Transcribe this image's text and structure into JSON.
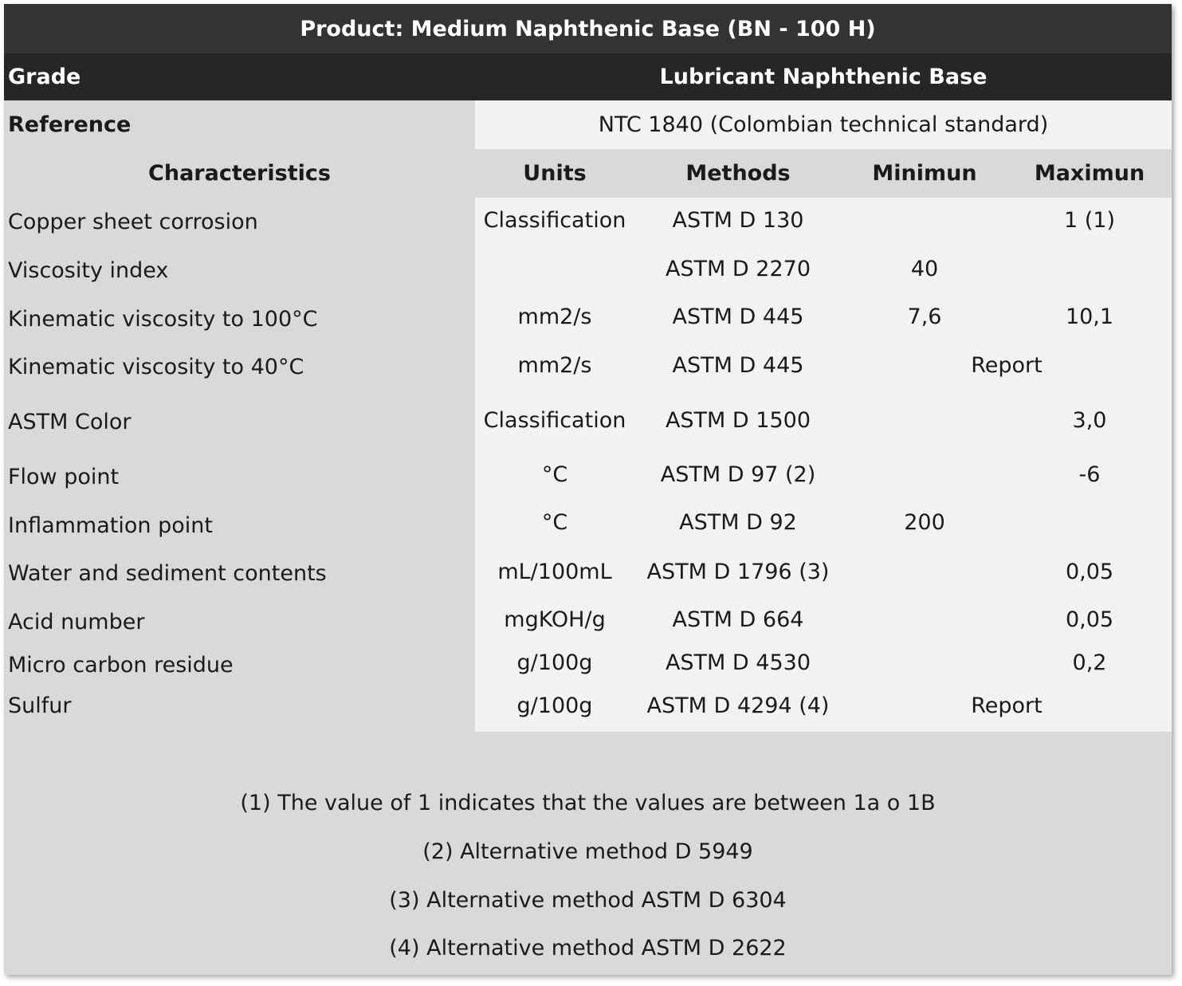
{
  "title": "Product: Medium Naphthenic Base (BN - 100 H)",
  "grade": {
    "label": "Grade",
    "value": "Lubricant Naphthenic Base"
  },
  "reference": {
    "label": "Reference",
    "value": "NTC 1840 (Colombian technical standard)"
  },
  "headers": {
    "characteristics": "Characteristics",
    "units": "Units",
    "methods": "Methods",
    "minimum": "Minimun",
    "maximum": "Maximun"
  },
  "rows": [
    {
      "characteristic": "Copper sheet corrosion",
      "units": "Classification",
      "method": "ASTM D 130",
      "min": "",
      "max": "1 (1)"
    },
    {
      "characteristic": "Viscosity index",
      "units": "",
      "method": "ASTM D 2270",
      "min": "40",
      "max": ""
    },
    {
      "characteristic": "Kinematic viscosity to 100°C",
      "units": "mm2/s",
      "method": "ASTM D 445",
      "min": "7,6",
      "max": "10,1"
    },
    {
      "characteristic": "Kinematic viscosity to 40°C",
      "units": "mm2/s",
      "method": "ASTM D 445",
      "span": "Report"
    },
    {
      "characteristic": "ASTM Color",
      "units": "Classification",
      "method": "ASTM D 1500",
      "min": "",
      "max": "3,0"
    },
    {
      "characteristic": "Flow point",
      "units": "°C",
      "method": "ASTM D 97 (2)",
      "min": "",
      "max": "-6"
    },
    {
      "characteristic": "Inflammation point",
      "units": "°C",
      "method": "ASTM D 92",
      "min": "200",
      "max": ""
    },
    {
      "characteristic": "Water and sediment contents",
      "units": "mL/100mL",
      "method": "ASTM D 1796 (3)",
      "min": "",
      "max": "0,05"
    },
    {
      "characteristic": "Acid number",
      "units": "mgKOH/g",
      "method": "ASTM D 664",
      "min": "",
      "max": "0,05"
    },
    {
      "characteristic": "Micro carbon residue",
      "units": "g/100g",
      "method": "ASTM D 4530",
      "min": "",
      "max": "0,2"
    },
    {
      "characteristic": "Sulfur",
      "units": "g/100g",
      "method": "ASTM D 4294 (4)",
      "span": "Report"
    }
  ],
  "notes": [
    "(1) The value of 1 indicates that the values are between 1a o 1B",
    "(2) Alternative method D 5949",
    "(3) Alternative method ASTM D 6304",
    "(4) Alternative method ASTM D 2622"
  ]
}
